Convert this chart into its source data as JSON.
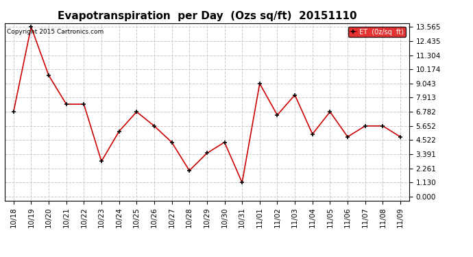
{
  "title": "Evapotranspiration  per Day  (Ozs sq/ft)  20151110",
  "copyright_text": "Copyright 2015 Cartronics.com",
  "legend_label": "ET  (0z/sq  ft)",
  "x_labels": [
    "10/18",
    "10/19",
    "10/20",
    "10/21",
    "10/22",
    "10/23",
    "10/24",
    "10/25",
    "10/26",
    "10/27",
    "10/28",
    "10/29",
    "10/30",
    "10/31",
    "11/01",
    "11/02",
    "11/03",
    "11/04",
    "11/05",
    "11/06",
    "11/07",
    "11/08",
    "11/09"
  ],
  "y_values": [
    6.782,
    13.565,
    9.695,
    7.391,
    7.391,
    2.826,
    5.217,
    6.782,
    5.652,
    4.348,
    2.087,
    3.478,
    4.348,
    1.13,
    9.043,
    6.521,
    8.13,
    5.0,
    6.782,
    4.783,
    5.652,
    5.652,
    4.782
  ],
  "line_color": "#cc0000",
  "marker_color": "#000000",
  "background_color": "#ffffff",
  "grid_color": "#c8c8c8",
  "ylim": [
    0.0,
    13.565
  ],
  "yticks": [
    0.0,
    1.13,
    2.261,
    3.391,
    4.522,
    5.652,
    6.782,
    7.913,
    9.043,
    10.174,
    11.304,
    12.435,
    13.565
  ],
  "title_fontsize": 11,
  "tick_fontsize": 7.5,
  "copyright_fontsize": 6.5,
  "legend_bg": "#dd0000",
  "legend_text_color": "#ffffff"
}
